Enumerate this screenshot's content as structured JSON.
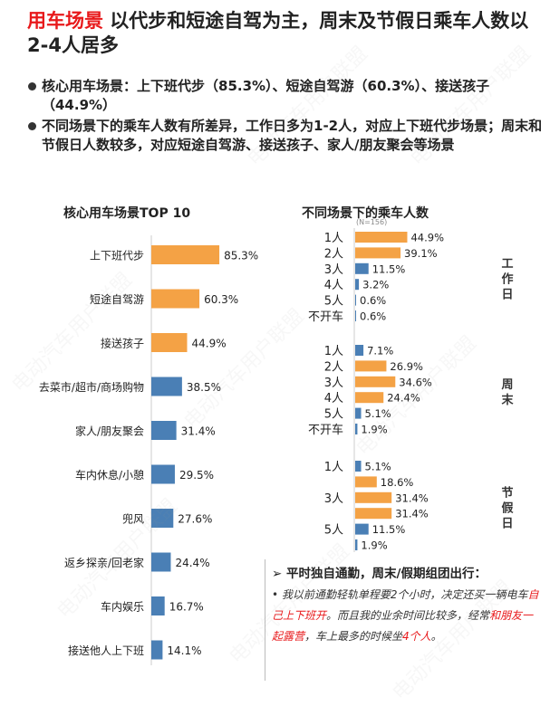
{
  "header": {
    "title_highlight": "用车场景",
    "title_rest": " 以代步和短途自驾为主，周末及节假日乘车人数以2-4人居多"
  },
  "bullets": [
    "核心用车场景：上下班代步（85.3%）、短途自驾游（60.3%）、接送孩子（44.9%）",
    "不同场景下的乘车人数有所差异，工作日多为1-2人，对应上下班代步场景；周末和节假日人数较多，对应短途自驾游、接送孩子、家人/朋友聚会等场景"
  ],
  "watermark": "电动汽车用户联盟",
  "colors": {
    "orange": "#f4a245",
    "blue": "#4a7fb5",
    "red": "#e8191b"
  },
  "chart_data": [
    {
      "type": "bar",
      "orientation": "horizontal",
      "title": "核心用车场景TOP 10",
      "categories": [
        "上下班代步",
        "短途自驾游",
        "接送孩子",
        "去菜市/超市/商场购物",
        "家人/朋友聚会",
        "车内休息/小憩",
        "兜风",
        "返乡探亲/回老家",
        "车内娱乐",
        "接送他人上下班"
      ],
      "values": [
        85.3,
        60.3,
        44.9,
        38.5,
        31.4,
        29.5,
        27.6,
        24.4,
        16.7,
        14.1
      ],
      "labels": [
        "85.3%",
        "60.3%",
        "44.9%",
        "38.5%",
        "31.4%",
        "29.5%",
        "27.6%",
        "24.4%",
        "16.7%",
        "14.1%"
      ],
      "highlight_top": 3,
      "xlim": [
        0,
        100
      ]
    },
    {
      "type": "bar",
      "orientation": "horizontal",
      "title": "不同场景下的乘车人数",
      "subtitle": "(N=156)",
      "xlim": [
        0,
        100
      ],
      "groups": [
        {
          "name": "工作日",
          "categories": [
            "1人",
            "2人",
            "3人",
            "4人",
            "5人",
            "不开车"
          ],
          "values": [
            44.9,
            39.1,
            11.5,
            3.2,
            0.6,
            0.6
          ],
          "labels": [
            "44.9%",
            "39.1%",
            "11.5%",
            "3.2%",
            "0.6%",
            "0.6%"
          ]
        },
        {
          "name": "周末",
          "categories": [
            "1人",
            "2人",
            "3人",
            "4人",
            "5人",
            "不开车"
          ],
          "values": [
            7.1,
            26.9,
            34.6,
            24.4,
            5.1,
            1.9
          ],
          "labels": [
            "7.1%",
            "26.9%",
            "34.6%",
            "24.4%",
            "5.1%",
            "1.9%"
          ]
        },
        {
          "name": "节假日",
          "categories": [
            "1人",
            "",
            "3人",
            "",
            "5人",
            ""
          ],
          "values": [
            5.1,
            18.6,
            31.4,
            31.4,
            11.5,
            1.9
          ],
          "labels": [
            "5.1%",
            "18.6%",
            "31.4%",
            "31.4%",
            "11.5%",
            "1.9%"
          ]
        }
      ]
    }
  ],
  "note": {
    "head": "平时独自通勤，周末/假期组团出行：",
    "parts": [
      {
        "t": "我以前通勤轻轨单程要2个小时，决定还买一辆电车",
        "red": false
      },
      {
        "t": "自己上下班开",
        "red": true
      },
      {
        "t": "。而且我的业余时间比较多，经常",
        "red": false
      },
      {
        "t": "和朋友一起露营",
        "red": true
      },
      {
        "t": "，车上最多的时候坐",
        "red": false
      },
      {
        "t": "4个人",
        "red": true
      },
      {
        "t": "。",
        "red": false
      }
    ]
  }
}
